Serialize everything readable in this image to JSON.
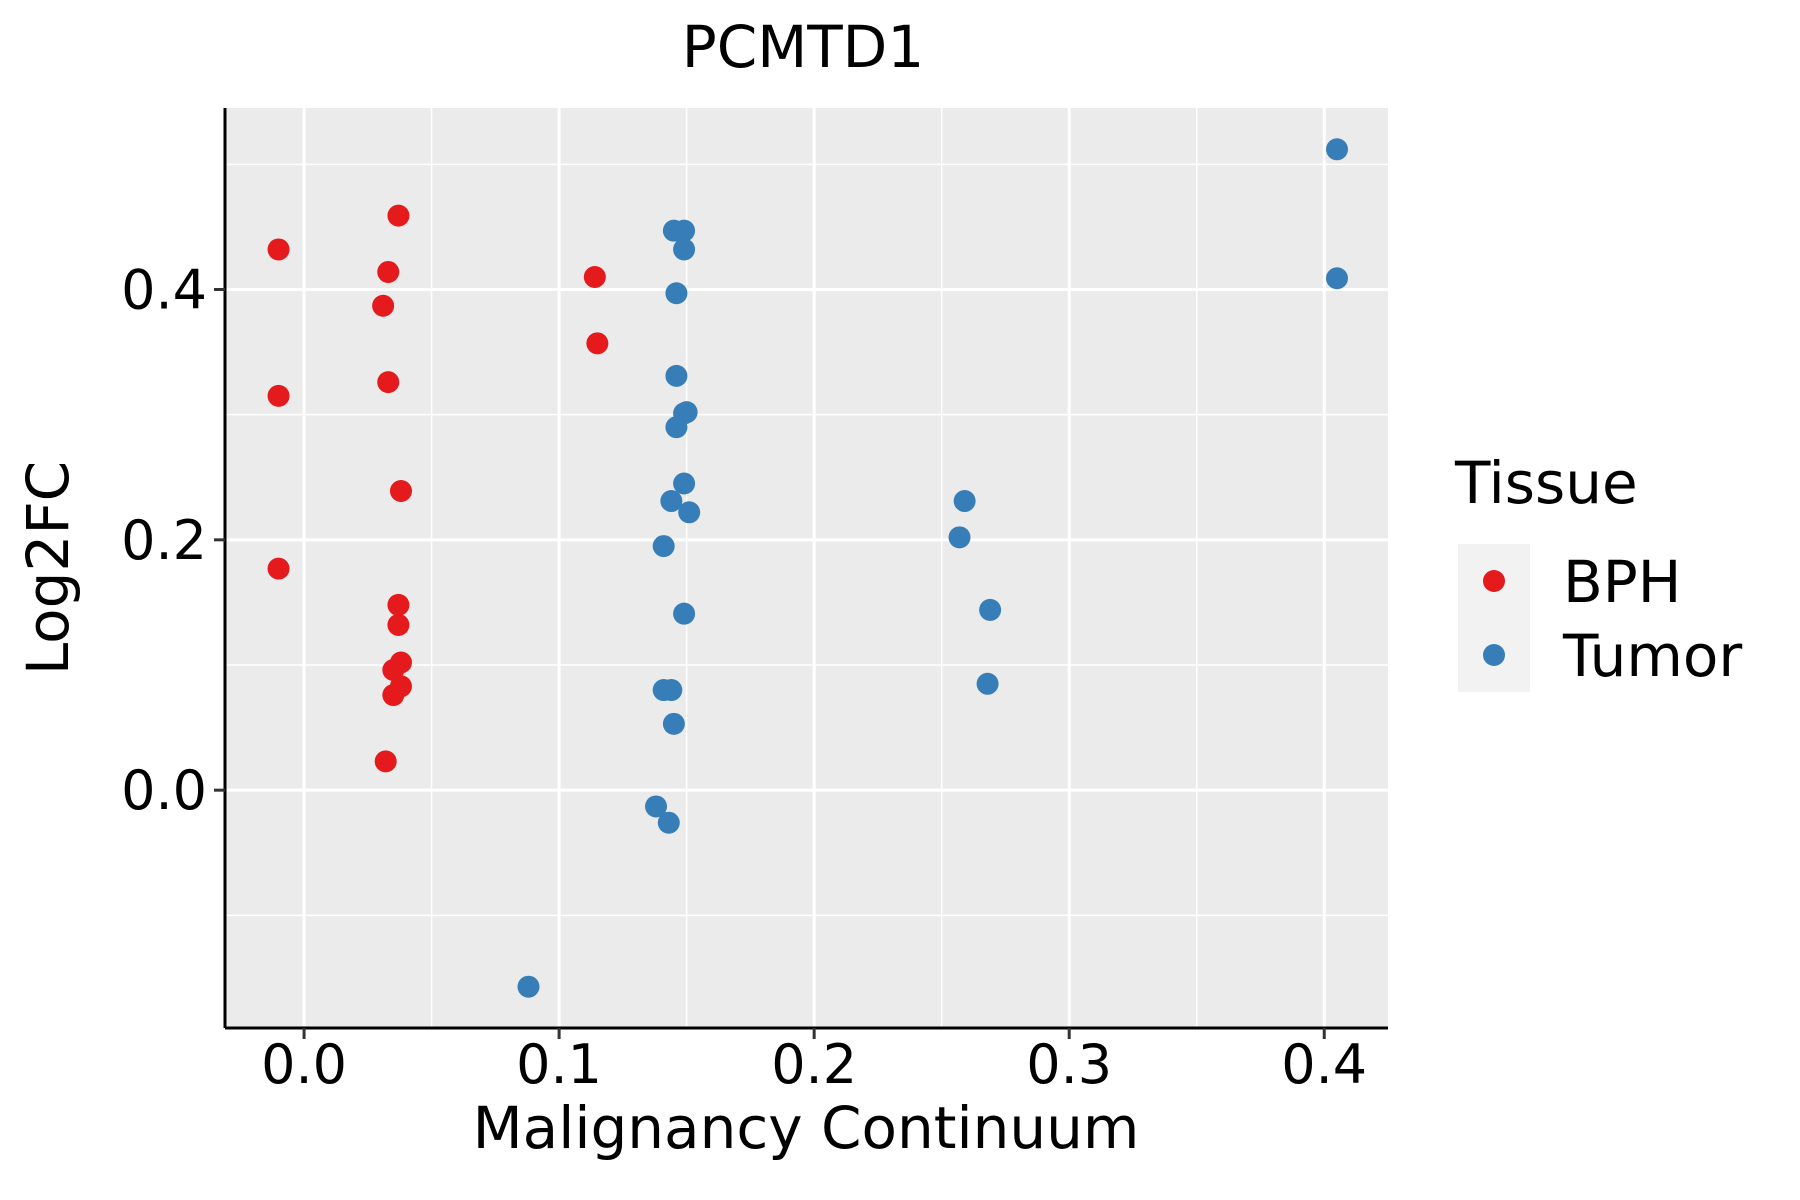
{
  "chart_data": {
    "type": "scatter",
    "title": "PCMTD1",
    "xlabel": "Malignancy Continuum",
    "ylabel": "Log2FC",
    "xlim": [
      -0.031,
      0.425
    ],
    "ylim": [
      -0.19,
      0.545
    ],
    "xticks": [
      0.0,
      0.1,
      0.2,
      0.3,
      0.4
    ],
    "xtick_labels": [
      "0.0",
      "0.1",
      "0.2",
      "0.3",
      "0.4"
    ],
    "yticks": [
      0.0,
      0.2,
      0.4
    ],
    "ytick_labels": [
      "0.0",
      "0.2",
      "0.4"
    ],
    "x_minor": [
      0.05,
      0.15,
      0.25,
      0.35
    ],
    "y_minor": [
      -0.1,
      0.1,
      0.3,
      0.5
    ],
    "grid": true,
    "legend": {
      "title": "Tissue",
      "position": "right",
      "entries": [
        {
          "label": "BPH",
          "color": "#E41A1C"
        },
        {
          "label": "Tumor",
          "color": "#377EB8"
        }
      ]
    },
    "series": [
      {
        "name": "BPH",
        "color": "#E41A1C",
        "points": [
          [
            -0.01,
            0.432
          ],
          [
            -0.01,
            0.315
          ],
          [
            -0.01,
            0.177
          ],
          [
            0.037,
            0.459
          ],
          [
            0.033,
            0.414
          ],
          [
            0.031,
            0.387
          ],
          [
            0.033,
            0.326
          ],
          [
            0.038,
            0.239
          ],
          [
            0.037,
            0.148
          ],
          [
            0.037,
            0.132
          ],
          [
            0.038,
            0.102
          ],
          [
            0.035,
            0.096
          ],
          [
            0.038,
            0.083
          ],
          [
            0.035,
            0.076
          ],
          [
            0.032,
            0.023
          ],
          [
            0.114,
            0.41
          ],
          [
            0.115,
            0.357
          ]
        ]
      },
      {
        "name": "Tumor",
        "color": "#377EB8",
        "points": [
          [
            0.088,
            -0.157
          ],
          [
            0.145,
            0.447
          ],
          [
            0.149,
            0.447
          ],
          [
            0.149,
            0.432
          ],
          [
            0.146,
            0.397
          ],
          [
            0.146,
            0.331
          ],
          [
            0.15,
            0.302
          ],
          [
            0.149,
            0.301
          ],
          [
            0.146,
            0.29
          ],
          [
            0.149,
            0.245
          ],
          [
            0.144,
            0.231
          ],
          [
            0.151,
            0.222
          ],
          [
            0.141,
            0.195
          ],
          [
            0.149,
            0.141
          ],
          [
            0.141,
            0.08
          ],
          [
            0.144,
            0.08
          ],
          [
            0.145,
            0.053
          ],
          [
            0.138,
            -0.013
          ],
          [
            0.143,
            -0.026
          ],
          [
            0.259,
            0.231
          ],
          [
            0.257,
            0.202
          ],
          [
            0.269,
            0.144
          ],
          [
            0.268,
            0.085
          ],
          [
            0.405,
            0.512
          ],
          [
            0.405,
            0.409
          ]
        ]
      }
    ]
  }
}
